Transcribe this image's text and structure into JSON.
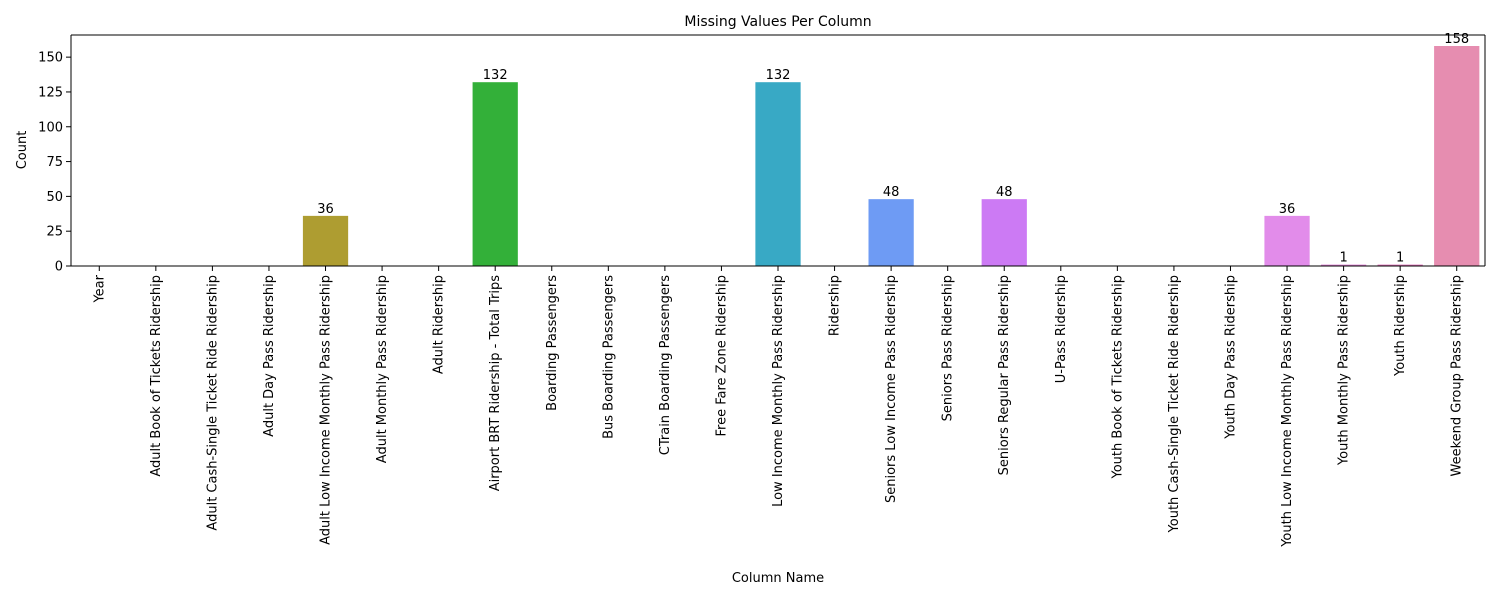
{
  "chart_data": {
    "type": "bar",
    "title": "Missing Values Per Column",
    "xlabel": "Column Name",
    "ylabel": "Count",
    "ylim": [
      0,
      165.9
    ],
    "yticks": [
      0,
      25,
      50,
      75,
      100,
      125,
      150
    ],
    "grid": false,
    "categories": [
      "Year",
      "Adult Book of Tickets Ridership",
      "Adult Cash-Single Ticket Ride Ridership",
      "Adult Day Pass Ridership",
      "Adult Low Income Monthly Pass Ridership",
      "Adult Monthly Pass Ridership",
      "Adult Ridership",
      "Airport BRT Ridership - Total Trips",
      "Boarding Passengers",
      "Bus Boarding Passengers",
      "CTrain Boarding Passengers",
      "Free Fare Zone Ridership",
      "Low Income Monthly Pass Ridership",
      "Ridership",
      "Seniors Low Income Pass Ridership",
      "Seniors Pass Ridership",
      "Seniors Regular Pass Ridership",
      "U-Pass Ridership",
      "Youth Book of Tickets Ridership",
      "Youth Cash-Single Ticket Ride Ridership",
      "Youth Day Pass Ridership",
      "Youth Low Income Monthly Pass Ridership",
      "Youth Monthly Pass Ridership",
      "Youth Ridership",
      "Weekend Group Pass Ridership"
    ],
    "values": [
      0,
      0,
      0,
      0,
      36,
      0,
      0,
      132,
      0,
      0,
      0,
      0,
      132,
      0,
      48,
      0,
      48,
      0,
      0,
      0,
      0,
      36,
      1,
      1,
      158
    ],
    "data_labels": [
      "",
      "",
      "",
      "",
      "36",
      "",
      "",
      "132",
      "",
      "",
      "",
      "",
      "132",
      "",
      "48",
      "",
      "48",
      "",
      "",
      "",
      "",
      "36",
      "1",
      "1",
      "158"
    ],
    "colors": [
      "#f77189",
      "#f7754f",
      "#dc8932",
      "#c39532",
      "#ae9d31",
      "#97a431",
      "#77ab31",
      "#33b039",
      "#34ae80",
      "#35ac9a",
      "#36ada4",
      "#37abb4",
      "#38a9c5",
      "#3aa5df",
      "#6e9bf4",
      "#a48cf4",
      "#cc7af4",
      "#f45cf2",
      "#f565cc",
      "#f66bad",
      "#f66bad",
      "#e28cea",
      "#e07fd4",
      "#e070b8",
      "#e68db0"
    ]
  }
}
